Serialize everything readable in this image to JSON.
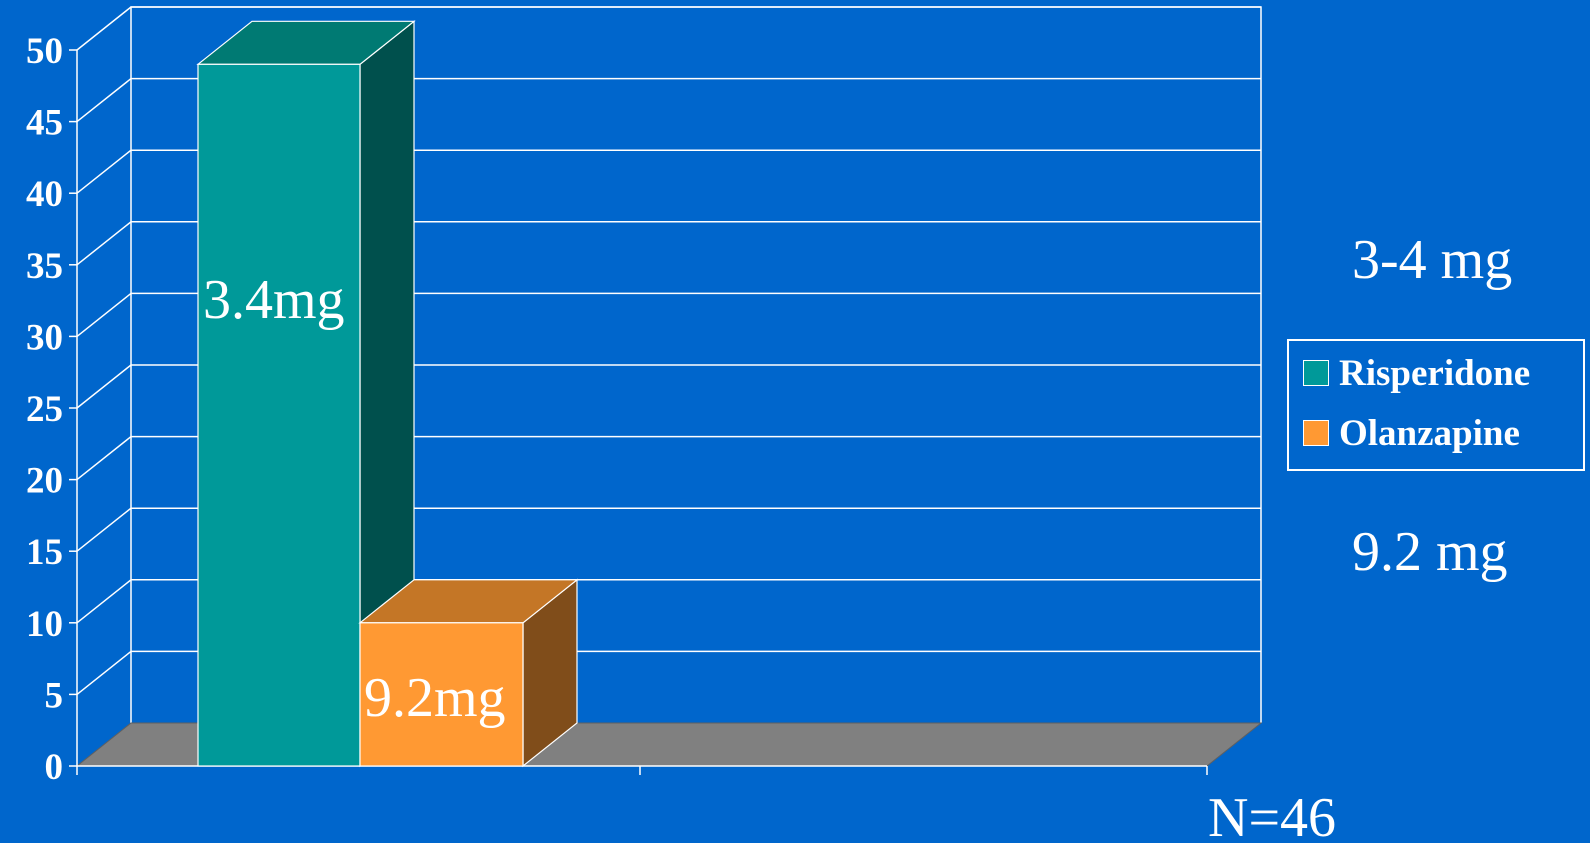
{
  "chart_data": {
    "type": "bar",
    "three_d": true,
    "categories": [
      ""
    ],
    "series": [
      {
        "name": "Risperidone",
        "values": [
          49
        ],
        "data_label": "3.4mg",
        "color": "#009999"
      },
      {
        "name": "Olanzapine",
        "values": [
          10
        ],
        "data_label": "9.2mg",
        "color": "#FF9933"
      }
    ],
    "title": "",
    "xlabel": "",
    "ylabel": "",
    "ylim": [
      0,
      50
    ],
    "y_ticks": [
      "0",
      "5",
      "10",
      "15",
      "20",
      "25",
      "30",
      "35",
      "40",
      "45",
      "50"
    ],
    "grid": true,
    "legend_position": "right",
    "colors": {
      "background": "#0066CC",
      "grid": "#FFFFFF",
      "floor": "#808080",
      "risperidone_front": "#009999",
      "risperidone_top": "#007A73",
      "risperidone_side": "#00504D",
      "olanzapine_front": "#FF9933",
      "olanzapine_top": "#C47626",
      "olanzapine_side": "#804D1A"
    }
  },
  "annotations": {
    "right_top": "3-4 mg",
    "right_bottom": "9.2 mg",
    "bottom_right": "N=46"
  },
  "legend": {
    "items": [
      {
        "label": "Risperidone",
        "color": "#009999"
      },
      {
        "label": "Olanzapine",
        "color": "#FF9933"
      }
    ]
  }
}
